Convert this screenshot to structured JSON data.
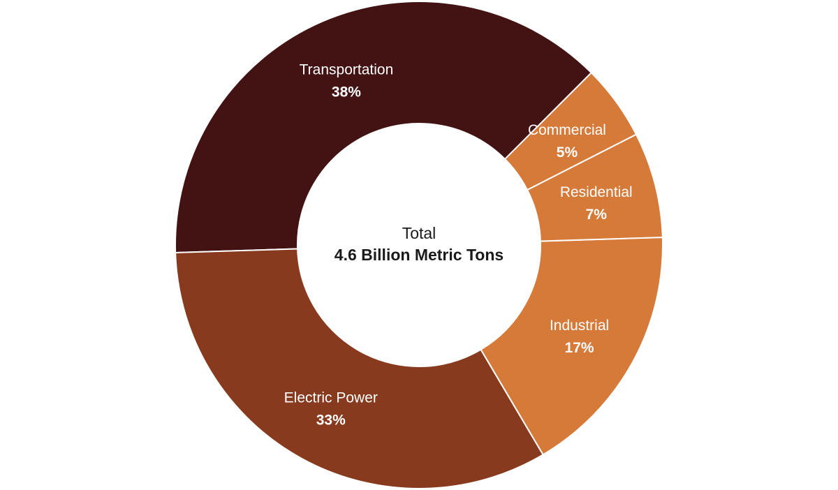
{
  "chart_data": {
    "type": "pie",
    "title": "",
    "center": {
      "label": "Total",
      "value": "4.6 Billion Metric Tons"
    },
    "slices": [
      {
        "label": "Transportation",
        "value": 38,
        "value_label": "38%",
        "color": "#431212"
      },
      {
        "label": "Electric Power",
        "value": 33,
        "value_label": "33%",
        "color": "#883a1e"
      },
      {
        "label": "Industrial",
        "value": 17,
        "value_label": "17%",
        "color": "#d67a3a"
      },
      {
        "label": "Residential",
        "value": 7,
        "value_label": "7%",
        "color": "#d67a3a"
      },
      {
        "label": "Commercial",
        "value": 5,
        "value_label": "5%",
        "color": "#d67a3a"
      }
    ]
  }
}
